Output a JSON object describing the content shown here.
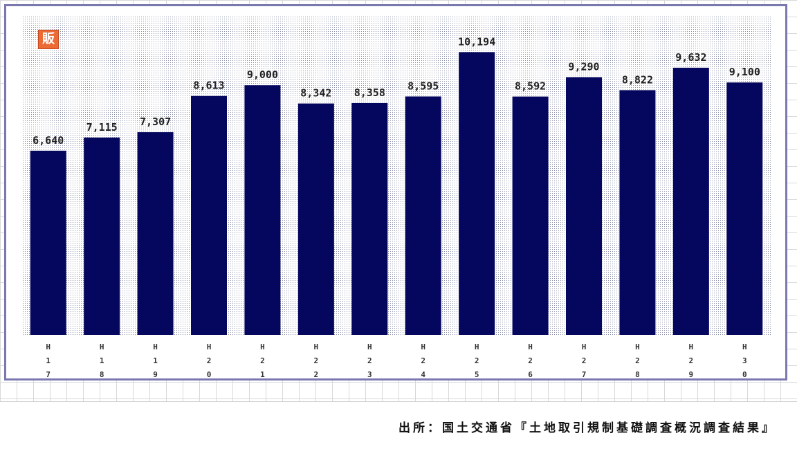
{
  "chart_data": {
    "type": "bar",
    "categories": [
      "H17",
      "H18",
      "H19",
      "H20",
      "H21",
      "H22",
      "H23",
      "H24",
      "H25",
      "H26",
      "H27",
      "H28",
      "H29",
      "H30"
    ],
    "category_ticks": [
      [
        "H",
        "1",
        "7"
      ],
      [
        "H",
        "1",
        "8"
      ],
      [
        "H",
        "1",
        "9"
      ],
      [
        "H",
        "2",
        "0"
      ],
      [
        "H",
        "2",
        "1"
      ],
      [
        "H",
        "2",
        "2"
      ],
      [
        "H",
        "2",
        "3"
      ],
      [
        "H",
        "2",
        "4"
      ],
      [
        "H",
        "2",
        "5"
      ],
      [
        "H",
        "2",
        "6"
      ],
      [
        "H",
        "2",
        "7"
      ],
      [
        "H",
        "2",
        "8"
      ],
      [
        "H",
        "2",
        "9"
      ],
      [
        "H",
        "3",
        "0"
      ]
    ],
    "values": [
      6640,
      7115,
      7307,
      8613,
      9000,
      8342,
      8358,
      8595,
      10194,
      8592,
      9290,
      8822,
      9632,
      9100
    ],
    "value_labels": [
      "6,640",
      "7,115",
      "7,307",
      "8,613",
      "9,000",
      "8,342",
      "8,358",
      "8,595",
      "10,194",
      "8,592",
      "9,290",
      "8,822",
      "9,632",
      "9,100"
    ],
    "ylim": [
      0,
      11500
    ],
    "bar_color": "#05065e",
    "grid": false,
    "legend": "none"
  },
  "badge": {
    "text": "販",
    "color": "#ec6a34"
  },
  "source_note": "出所：国土交通省『土地取引規制基礎調査概況調査結果』"
}
